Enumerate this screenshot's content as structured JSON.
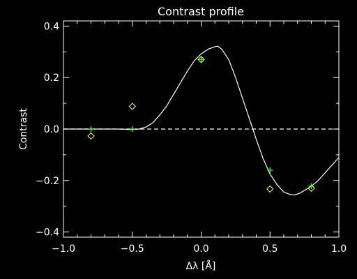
{
  "chart_data": {
    "type": "line",
    "title": "Contrast profile",
    "xlabel": "Δλ [Å]",
    "ylabel": "Contrast",
    "xlim": [
      -1.0,
      1.0
    ],
    "ylim": [
      -0.42,
      0.42
    ],
    "x_ticks": [
      "−1.0",
      "−0.5",
      "0.0",
      "0.5",
      "1.0"
    ],
    "y_ticks": [
      "−0.4",
      "−0.2",
      "0.0",
      "0.2",
      "0.4"
    ],
    "x_tick_values": [
      -1.0,
      -0.5,
      0.0,
      0.5,
      1.0
    ],
    "y_tick_values": [
      -0.4,
      -0.2,
      0.0,
      0.2,
      0.4
    ],
    "grid": false,
    "colors": {
      "background": "#000000",
      "axes": "#ffffff",
      "curve": "#ffffff",
      "diamond_markers": "#ffff66",
      "plus_markers": "#33ff33"
    },
    "series": [
      {
        "style": "solid-curve",
        "x": [
          -1.0,
          -0.6,
          -0.5,
          -0.45,
          -0.4,
          -0.35,
          -0.3,
          -0.25,
          -0.2,
          -0.15,
          -0.1,
          -0.05,
          0.0,
          0.05,
          0.1,
          0.12,
          0.15,
          0.2,
          0.25,
          0.3,
          0.35,
          0.4,
          0.45,
          0.5,
          0.55,
          0.6,
          0.65,
          0.68,
          0.72,
          0.76,
          0.8,
          0.85,
          0.9,
          0.95,
          1.0
        ],
        "y": [
          0.0,
          0.0,
          -0.002,
          0.0,
          0.008,
          0.025,
          0.055,
          0.09,
          0.135,
          0.18,
          0.225,
          0.265,
          0.292,
          0.31,
          0.32,
          0.322,
          0.31,
          0.27,
          0.2,
          0.12,
          0.04,
          -0.04,
          -0.115,
          -0.175,
          -0.215,
          -0.245,
          -0.255,
          -0.256,
          -0.248,
          -0.235,
          -0.222,
          -0.2,
          -0.17,
          -0.14,
          -0.11
        ]
      },
      {
        "style": "dashed-line",
        "x": [
          -1.0,
          1.0
        ],
        "y": [
          0.0,
          0.0
        ]
      },
      {
        "style": "diamond-markers",
        "x": [
          -0.8,
          -0.5,
          0.0,
          0.5,
          0.8
        ],
        "y": [
          -0.027,
          0.088,
          0.27,
          -0.233,
          -0.23
        ]
      },
      {
        "style": "plus-markers",
        "x": [
          -0.8,
          -0.5,
          0.0,
          0.5,
          0.8
        ],
        "y": [
          0.0,
          0.0,
          0.27,
          -0.16,
          -0.222
        ]
      }
    ]
  }
}
